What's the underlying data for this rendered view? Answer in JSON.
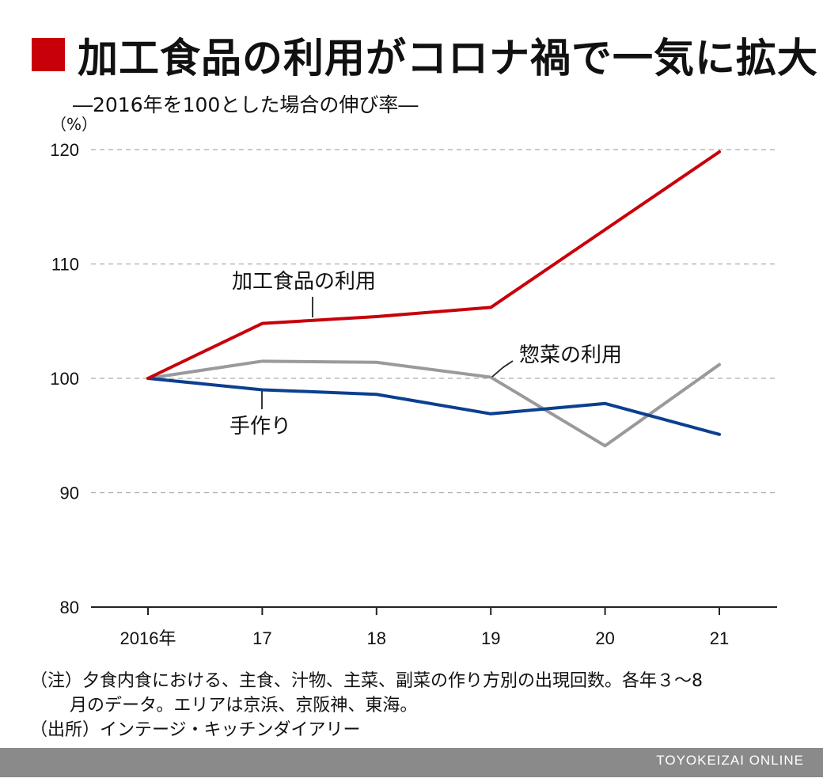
{
  "title": "加工食品の利用がコロナ禍で一気に拡大",
  "subtitle": "―2016年を100とした場合の伸び率―",
  "chart_data": {
    "type": "line",
    "title": "加工食品の利用がコロナ禍で一気に拡大",
    "subtitle": "―2016年を100とした場合の伸び率―",
    "ylabel": "（%）",
    "xlabel": "",
    "categories": [
      "2016年",
      "17",
      "18",
      "19",
      "20",
      "21"
    ],
    "ylim": [
      80,
      120
    ],
    "yticks": [
      80,
      90,
      100,
      110,
      120
    ],
    "grid": true,
    "series": [
      {
        "name": "加工食品の利用",
        "color": "#c8000a",
        "values": [
          100,
          104.8,
          105.4,
          106.2,
          113.0,
          119.8
        ]
      },
      {
        "name": "惣菜の利用",
        "color": "#9a9a9a",
        "values": [
          100,
          101.5,
          101.4,
          100.1,
          94.1,
          101.2
        ]
      },
      {
        "name": "手作り",
        "color": "#0b3f8f",
        "values": [
          100,
          99.0,
          98.6,
          96.9,
          97.8,
          95.1
        ]
      }
    ]
  },
  "notes": {
    "line1": "（注）夕食内食における、主食、汁物、主菜、副菜の作り方別の出現回数。各年３〜8",
    "line2": "月のデータ。エリアは京浜、京阪神、東海。",
    "line3": "（出所）インテージ・キッチンダイアリー"
  },
  "brand": "TOYOKEIZAI ONLINE",
  "colors": {
    "accent": "#c8000a",
    "footer": "#8a8a8a"
  }
}
